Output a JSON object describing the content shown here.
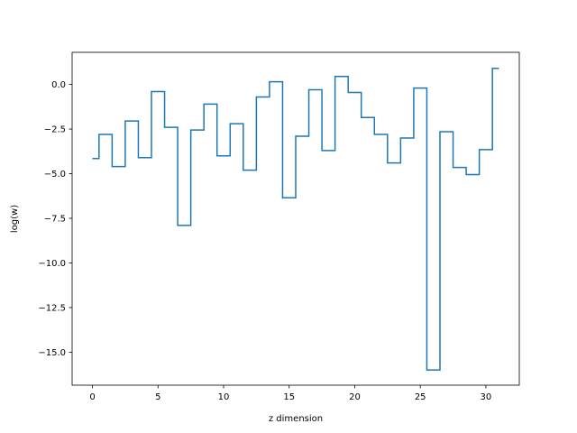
{
  "chart_data": {
    "type": "line",
    "drawstyle": "steps-mid",
    "title": "",
    "xlabel": "z dimension",
    "ylabel": "log(w)",
    "xlim": [
      -1.55,
      32.55
    ],
    "ylim": [
      -16.85,
      1.8
    ],
    "xticks": [
      0,
      5,
      10,
      15,
      20,
      25,
      30
    ],
    "yticks": [
      0.0,
      -2.5,
      -5.0,
      -7.5,
      -10.0,
      -12.5,
      -15.0
    ],
    "xtick_labels": [
      "0",
      "5",
      "10",
      "15",
      "20",
      "25",
      "30"
    ],
    "ytick_labels": [
      "0.0",
      "−2.5",
      "−5.0",
      "−7.5",
      "−10.0",
      "−12.5",
      "−15.0"
    ],
    "grid": false,
    "legend": "none",
    "series": [
      {
        "color": "#1f77b4",
        "x": [
          0,
          1,
          2,
          3,
          4,
          5,
          6,
          7,
          8,
          9,
          10,
          11,
          12,
          13,
          14,
          15,
          16,
          17,
          18,
          19,
          20,
          21,
          22,
          23,
          24,
          25,
          26,
          27,
          28,
          29,
          30,
          31
        ],
        "values": [
          -4.15,
          -2.8,
          -4.6,
          -2.05,
          -4.1,
          -0.4,
          -2.4,
          -7.9,
          -2.55,
          -1.1,
          -4.0,
          -2.2,
          -4.8,
          -0.7,
          0.15,
          -6.35,
          -2.9,
          -0.3,
          -3.7,
          0.45,
          -0.45,
          -1.85,
          -2.8,
          -4.4,
          -3.0,
          -0.2,
          -16.0,
          -2.65,
          -4.65,
          -5.05,
          -3.65,
          0.9
        ]
      }
    ]
  }
}
